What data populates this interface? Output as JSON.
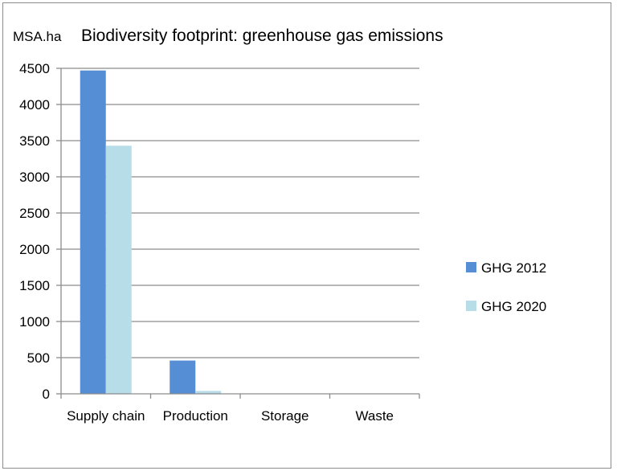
{
  "chart_data": {
    "type": "bar",
    "title": "Biodiversity footprint: greenhouse gas emissions",
    "ylabel": "MSA.ha",
    "xlabel": "",
    "categories": [
      "Supply chain",
      "Production",
      "Storage",
      "Waste"
    ],
    "series": [
      {
        "name": "GHG 2012",
        "values": [
          4470,
          460,
          0,
          0
        ],
        "color": "#558ed5"
      },
      {
        "name": "GHG 2020",
        "values": [
          3430,
          40,
          0,
          0
        ],
        "color": "#b7dde8"
      }
    ],
    "ylim": [
      0,
      4500
    ],
    "yticks": [
      "0",
      "500",
      "1000",
      "1500",
      "2000",
      "2500",
      "3000",
      "3500",
      "4000",
      "4500"
    ],
    "grid": true,
    "legend_position": "right"
  }
}
